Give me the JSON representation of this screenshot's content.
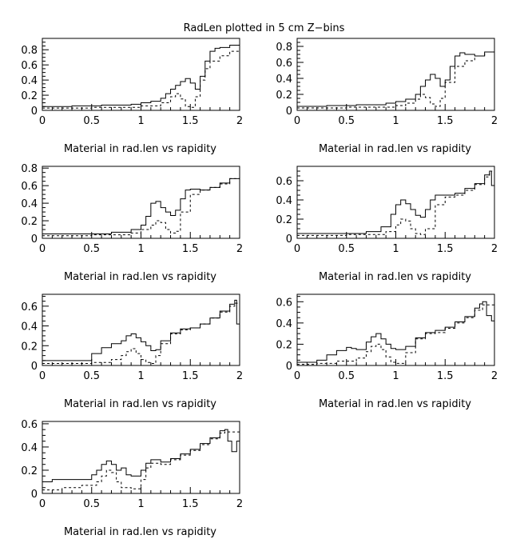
{
  "page": {
    "title": "RadLen plotted in 5 cm Z−bins"
  },
  "chart_data": [
    {
      "type": "line",
      "xlabel": "Material in rad.len vs rapidity",
      "xlim": [
        0,
        2
      ],
      "ylim": [
        0,
        0.95
      ],
      "xticks": [
        "0",
        "0.5",
        "1",
        "1.5",
        "2"
      ],
      "yticks": [
        "0",
        "0.2",
        "0.4",
        "0.6",
        "0.8"
      ],
      "series": [
        {
          "style": "solid",
          "x": [
            0,
            0.3,
            0.6,
            0.9,
            1.0,
            1.1,
            1.2,
            1.25,
            1.3,
            1.35,
            1.4,
            1.45,
            1.5,
            1.55,
            1.6,
            1.65,
            1.7,
            1.75,
            1.8,
            1.9,
            2.0
          ],
          "y": [
            0.05,
            0.06,
            0.07,
            0.08,
            0.1,
            0.12,
            0.16,
            0.22,
            0.28,
            0.33,
            0.38,
            0.42,
            0.36,
            0.28,
            0.45,
            0.65,
            0.78,
            0.82,
            0.83,
            0.86,
            0.88
          ]
        },
        {
          "style": "dashed",
          "x": [
            0,
            0.5,
            1.0,
            1.2,
            1.3,
            1.35,
            1.4,
            1.45,
            1.5,
            1.55,
            1.6,
            1.65,
            1.7,
            1.8,
            1.9,
            2.0
          ],
          "y": [
            0.03,
            0.04,
            0.06,
            0.1,
            0.18,
            0.22,
            0.15,
            0.05,
            0.04,
            0.18,
            0.4,
            0.55,
            0.65,
            0.72,
            0.78,
            0.84
          ]
        }
      ]
    },
    {
      "type": "line",
      "xlabel": "Material in rad.len vs rapidity",
      "xlim": [
        0,
        2
      ],
      "ylim": [
        0,
        0.9
      ],
      "xticks": [
        "0",
        "0.5",
        "1",
        "1.5",
        "2"
      ],
      "yticks": [
        "0",
        "0.2",
        "0.4",
        "0.6",
        "0.8"
      ],
      "series": [
        {
          "style": "solid",
          "x": [
            0,
            0.3,
            0.6,
            0.9,
            1.0,
            1.1,
            1.2,
            1.25,
            1.3,
            1.35,
            1.4,
            1.45,
            1.5,
            1.55,
            1.6,
            1.65,
            1.7,
            1.8,
            1.9,
            2.0
          ],
          "y": [
            0.05,
            0.06,
            0.07,
            0.09,
            0.11,
            0.14,
            0.2,
            0.3,
            0.38,
            0.45,
            0.4,
            0.3,
            0.38,
            0.55,
            0.68,
            0.72,
            0.7,
            0.68,
            0.73,
            0.8
          ]
        },
        {
          "style": "dashed",
          "x": [
            0,
            0.5,
            1.0,
            1.1,
            1.2,
            1.25,
            1.3,
            1.35,
            1.4,
            1.45,
            1.5,
            1.6,
            1.7,
            1.8,
            1.9,
            2.0
          ],
          "y": [
            0.03,
            0.04,
            0.06,
            0.09,
            0.14,
            0.2,
            0.16,
            0.08,
            0.05,
            0.15,
            0.35,
            0.55,
            0.62,
            0.68,
            0.73,
            0.8
          ]
        }
      ]
    },
    {
      "type": "line",
      "xlabel": "Material in rad.len vs rapidity",
      "xlim": [
        0,
        2
      ],
      "ylim": [
        0,
        0.82
      ],
      "xticks": [
        "0",
        "0.5",
        "1",
        "1.5",
        "2"
      ],
      "yticks": [
        "0",
        "0.2",
        "0.4",
        "0.6",
        "0.8"
      ],
      "series": [
        {
          "style": "solid",
          "x": [
            0,
            0.4,
            0.7,
            0.9,
            1.0,
            1.05,
            1.1,
            1.15,
            1.2,
            1.25,
            1.3,
            1.35,
            1.4,
            1.45,
            1.5,
            1.6,
            1.7,
            1.8,
            1.9,
            2.0
          ],
          "y": [
            0.05,
            0.05,
            0.07,
            0.1,
            0.15,
            0.25,
            0.4,
            0.42,
            0.35,
            0.3,
            0.26,
            0.32,
            0.45,
            0.55,
            0.56,
            0.55,
            0.58,
            0.63,
            0.68,
            0.75
          ]
        },
        {
          "style": "dashed",
          "x": [
            0,
            0.5,
            0.9,
            1.0,
            1.1,
            1.15,
            1.2,
            1.25,
            1.3,
            1.35,
            1.4,
            1.5,
            1.6,
            1.7,
            1.8,
            1.9,
            2.0
          ],
          "y": [
            0.03,
            0.04,
            0.06,
            0.1,
            0.15,
            0.2,
            0.18,
            0.1,
            0.06,
            0.08,
            0.3,
            0.5,
            0.55,
            0.58,
            0.62,
            0.68,
            0.73
          ]
        }
      ]
    },
    {
      "type": "line",
      "xlabel": "Material in rad.len vs rapidity",
      "xlim": [
        0,
        2
      ],
      "ylim": [
        0,
        0.75
      ],
      "xticks": [
        "0",
        "0.5",
        "1",
        "1.5",
        "2"
      ],
      "yticks": [
        "0",
        "0.2",
        "0.4",
        "0.6"
      ],
      "series": [
        {
          "style": "solid",
          "x": [
            0,
            0.4,
            0.7,
            0.85,
            0.95,
            1.0,
            1.05,
            1.1,
            1.15,
            1.2,
            1.25,
            1.3,
            1.35,
            1.4,
            1.5,
            1.6,
            1.7,
            1.8,
            1.9,
            1.95,
            1.97,
            2.0
          ],
          "y": [
            0.05,
            0.05,
            0.07,
            0.12,
            0.25,
            0.35,
            0.4,
            0.36,
            0.3,
            0.24,
            0.22,
            0.3,
            0.4,
            0.45,
            0.45,
            0.47,
            0.52,
            0.57,
            0.66,
            0.7,
            0.55,
            0.35
          ]
        },
        {
          "style": "dashed",
          "x": [
            0,
            0.5,
            0.9,
            1.0,
            1.05,
            1.1,
            1.15,
            1.2,
            1.25,
            1.3,
            1.4,
            1.5,
            1.6,
            1.7,
            1.8,
            1.9,
            1.95
          ],
          "y": [
            0.03,
            0.04,
            0.07,
            0.14,
            0.2,
            0.18,
            0.1,
            0.05,
            0.04,
            0.1,
            0.35,
            0.43,
            0.45,
            0.5,
            0.56,
            0.64,
            0.7
          ]
        }
      ]
    },
    {
      "type": "line",
      "xlabel": "Material in rad.len vs rapidity",
      "xlim": [
        0,
        2
      ],
      "ylim": [
        0,
        0.72
      ],
      "xticks": [
        "0",
        "0.5",
        "1",
        "1.5",
        "2"
      ],
      "yticks": [
        "0",
        "0.2",
        "0.4",
        "0.6"
      ],
      "series": [
        {
          "style": "solid",
          "x": [
            0,
            0.3,
            0.5,
            0.6,
            0.7,
            0.8,
            0.85,
            0.9,
            0.95,
            1.0,
            1.05,
            1.1,
            1.15,
            1.2,
            1.3,
            1.4,
            1.5,
            1.6,
            1.7,
            1.8,
            1.9,
            1.95,
            1.97,
            2.0
          ],
          "y": [
            0.05,
            0.05,
            0.12,
            0.18,
            0.22,
            0.25,
            0.3,
            0.32,
            0.28,
            0.24,
            0.2,
            0.15,
            0.16,
            0.25,
            0.33,
            0.37,
            0.38,
            0.42,
            0.48,
            0.55,
            0.62,
            0.66,
            0.42,
            0.45
          ]
        },
        {
          "style": "dashed",
          "x": [
            0,
            0.5,
            0.7,
            0.8,
            0.85,
            0.9,
            0.95,
            1.0,
            1.05,
            1.1,
            1.15,
            1.2,
            1.3,
            1.4,
            1.5,
            1.6,
            1.7,
            1.8,
            1.9,
            1.95
          ],
          "y": [
            0.02,
            0.03,
            0.06,
            0.1,
            0.14,
            0.17,
            0.12,
            0.06,
            0.03,
            0.02,
            0.1,
            0.22,
            0.32,
            0.36,
            0.38,
            0.42,
            0.48,
            0.54,
            0.6,
            0.63
          ]
        }
      ]
    },
    {
      "type": "line",
      "xlabel": "Material in rad.len vs rapidity",
      "xlim": [
        0,
        2
      ],
      "ylim": [
        0,
        0.67
      ],
      "xticks": [
        "0",
        "0.5",
        "1",
        "1.5",
        "2"
      ],
      "yticks": [
        "0",
        "0.2",
        "0.4",
        "0.6"
      ],
      "series": [
        {
          "style": "solid",
          "x": [
            0,
            0.2,
            0.3,
            0.4,
            0.5,
            0.55,
            0.6,
            0.7,
            0.75,
            0.8,
            0.85,
            0.9,
            0.95,
            1.0,
            1.1,
            1.2,
            1.3,
            1.4,
            1.5,
            1.6,
            1.7,
            1.8,
            1.85,
            1.88,
            1.92,
            1.97,
            2.0
          ],
          "y": [
            0.03,
            0.05,
            0.1,
            0.14,
            0.17,
            0.16,
            0.15,
            0.22,
            0.27,
            0.3,
            0.25,
            0.2,
            0.16,
            0.15,
            0.18,
            0.26,
            0.31,
            0.33,
            0.36,
            0.41,
            0.46,
            0.54,
            0.58,
            0.6,
            0.47,
            0.42,
            0.46
          ]
        },
        {
          "style": "dashed",
          "x": [
            0,
            0.2,
            0.4,
            0.6,
            0.7,
            0.75,
            0.8,
            0.85,
            0.9,
            0.95,
            1.0,
            1.1,
            1.2,
            1.3,
            1.4,
            1.5,
            1.6,
            1.7,
            1.8,
            1.88
          ],
          "y": [
            0.01,
            0.02,
            0.04,
            0.07,
            0.13,
            0.18,
            0.2,
            0.15,
            0.08,
            0.03,
            0.02,
            0.12,
            0.25,
            0.3,
            0.31,
            0.35,
            0.4,
            0.45,
            0.52,
            0.57
          ]
        }
      ]
    },
    {
      "type": "line",
      "xlabel": "Material in rad.len vs rapidity",
      "xlim": [
        0,
        2
      ],
      "ylim": [
        0,
        0.62
      ],
      "xticks": [
        "0",
        "0.5",
        "1",
        "1.5",
        "2"
      ],
      "yticks": [
        "0",
        "0.2",
        "0.4",
        "0.6"
      ],
      "series": [
        {
          "style": "solid",
          "x": [
            0,
            0.1,
            0.2,
            0.4,
            0.5,
            0.55,
            0.6,
            0.65,
            0.7,
            0.75,
            0.8,
            0.85,
            0.9,
            1.0,
            1.05,
            1.1,
            1.2,
            1.3,
            1.4,
            1.5,
            1.6,
            1.7,
            1.8,
            1.85,
            1.88,
            1.92,
            1.97,
            2.0
          ],
          "y": [
            0.1,
            0.12,
            0.12,
            0.12,
            0.16,
            0.2,
            0.25,
            0.28,
            0.25,
            0.2,
            0.22,
            0.16,
            0.15,
            0.2,
            0.26,
            0.29,
            0.27,
            0.3,
            0.34,
            0.38,
            0.43,
            0.48,
            0.54,
            0.55,
            0.45,
            0.36,
            0.45,
            0.6
          ]
        },
        {
          "style": "dashed",
          "x": [
            0,
            0.2,
            0.4,
            0.55,
            0.6,
            0.65,
            0.7,
            0.75,
            0.8,
            0.9,
            1.0,
            1.05,
            1.1,
            1.2,
            1.3,
            1.4,
            1.5,
            1.6,
            1.7,
            1.8,
            1.85
          ],
          "y": [
            0.03,
            0.05,
            0.07,
            0.1,
            0.15,
            0.2,
            0.18,
            0.1,
            0.05,
            0.04,
            0.12,
            0.22,
            0.26,
            0.25,
            0.29,
            0.33,
            0.37,
            0.42,
            0.47,
            0.52,
            0.53
          ]
        }
      ]
    }
  ]
}
